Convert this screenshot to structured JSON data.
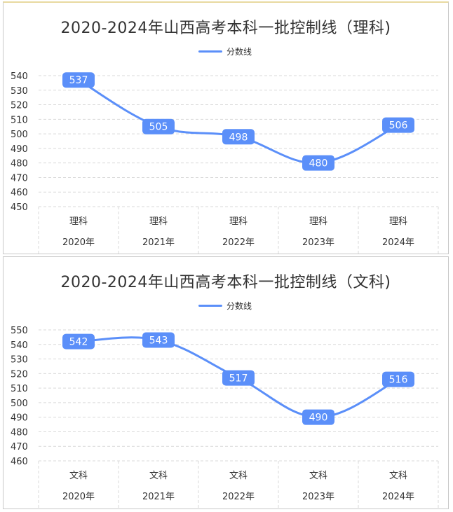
{
  "chart_data": [
    {
      "type": "line",
      "title": "2020-2024年山西高考本科一批控制线（理科)",
      "legend": [
        "分数线"
      ],
      "legend_position": "top-center",
      "categories": [
        [
          "理科",
          "2020年"
        ],
        [
          "理科",
          "2021年"
        ],
        [
          "理科",
          "2022年"
        ],
        [
          "理科",
          "2023年"
        ],
        [
          "理科",
          "2024年"
        ]
      ],
      "series": [
        {
          "name": "分数线",
          "values": [
            537,
            505,
            498,
            480,
            506
          ]
        }
      ],
      "yticks": [
        450,
        460,
        470,
        480,
        490,
        500,
        510,
        520,
        530,
        540
      ],
      "ylim": [
        450,
        540
      ],
      "grid": true,
      "color": "#5b8ff9"
    },
    {
      "type": "line",
      "title": "2020-2024年山西高考本科一批控制线（文科)",
      "legend": [
        "分数线"
      ],
      "legend_position": "top-center",
      "categories": [
        [
          "文科",
          "2020年"
        ],
        [
          "文科",
          "2021年"
        ],
        [
          "文科",
          "2022年"
        ],
        [
          "文科",
          "2023年"
        ],
        [
          "文科",
          "2024年"
        ]
      ],
      "series": [
        {
          "name": "分数线",
          "values": [
            542,
            543,
            517,
            490,
            516
          ]
        }
      ],
      "yticks": [
        460,
        470,
        480,
        490,
        500,
        510,
        520,
        530,
        540,
        550
      ],
      "ylim": [
        460,
        550
      ],
      "grid": true,
      "color": "#5b8ff9"
    }
  ]
}
